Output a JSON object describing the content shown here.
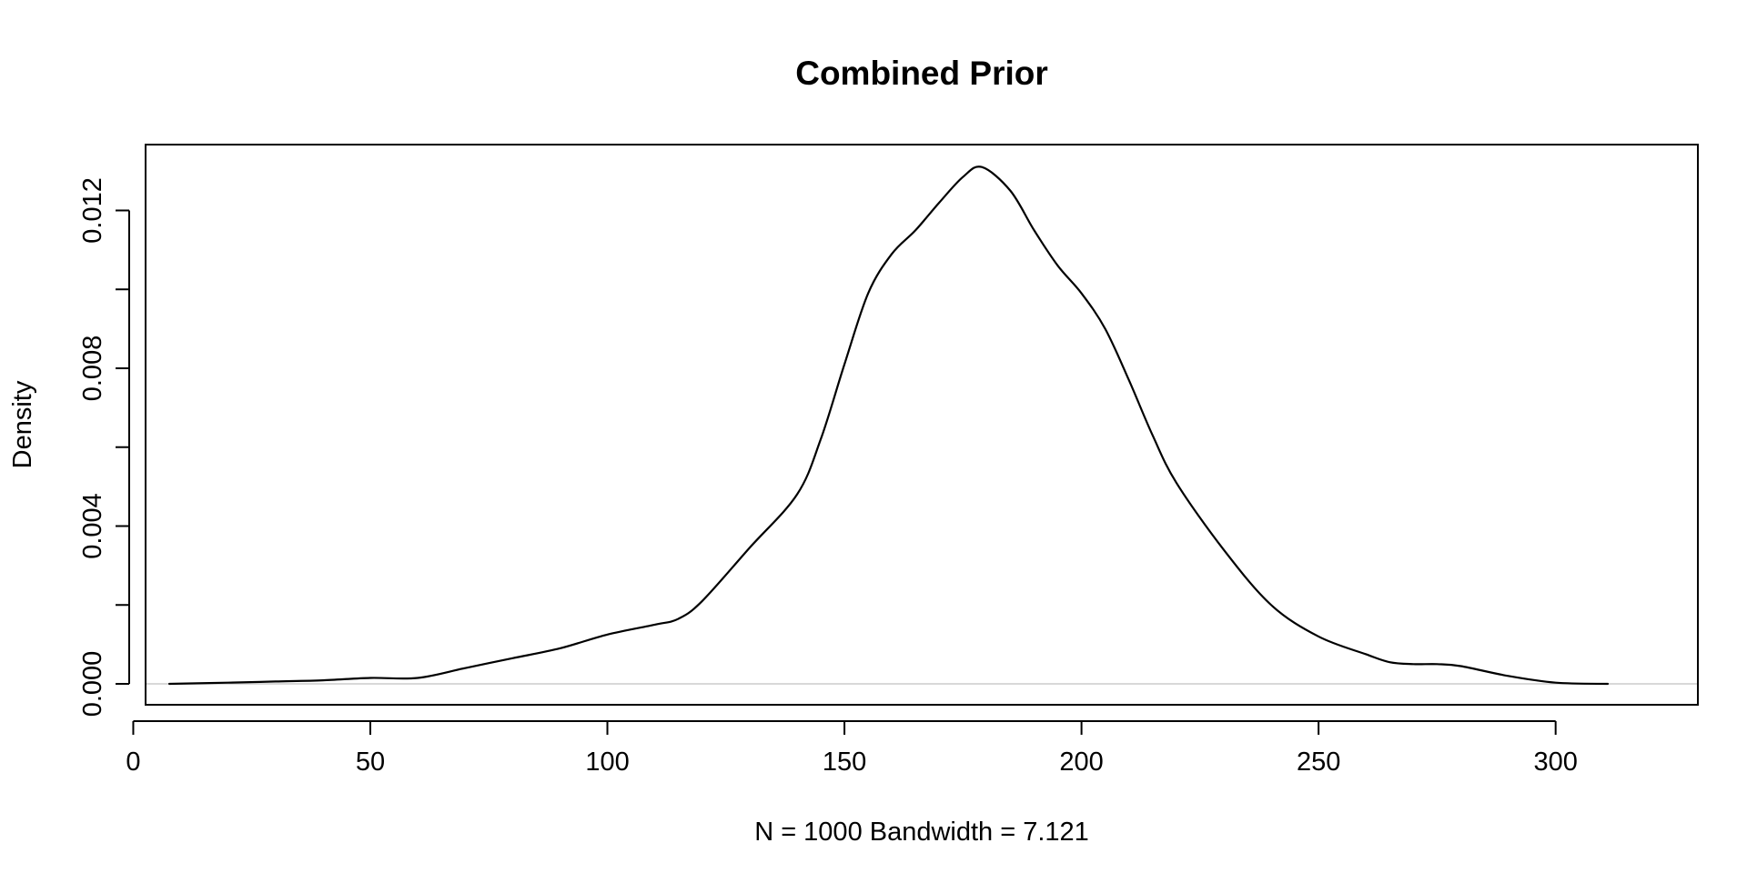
{
  "chart_data": {
    "type": "line",
    "title": "Combined Prior",
    "xlabel": "N = 1000   Bandwidth = 7.121",
    "ylabel": "Density",
    "xlim": [
      2.6,
      330
    ],
    "ylim": [
      -0.00053,
      0.01367
    ],
    "x_ticks": [
      0,
      50,
      100,
      150,
      200,
      250,
      300
    ],
    "x_tick_labels": [
      "0",
      "50",
      "100",
      "150",
      "200",
      "250",
      "300"
    ],
    "y_ticks": [
      0.0,
      0.002,
      0.004,
      0.006,
      0.008,
      0.01,
      0.012
    ],
    "y_tick_labels": [
      "0.000",
      "",
      "0.004",
      "",
      "0.008",
      "",
      "0.012"
    ],
    "zero_line": true,
    "grid": false,
    "colors": {
      "line": "#000000",
      "zero_line": "#cccccc",
      "frame": "#000000"
    },
    "series": [
      {
        "x": [
          7.6,
          20,
          30,
          40,
          50,
          60,
          70,
          80,
          90,
          100,
          110,
          115,
          120,
          130,
          140,
          145,
          150,
          155,
          160,
          165,
          170,
          175,
          179,
          185,
          190,
          195,
          200,
          205,
          210,
          215,
          220,
          230,
          240,
          250,
          260,
          265,
          270,
          275,
          280,
          290,
          300,
          311
        ],
        "y": [
          0.0,
          3e-05,
          6e-05,
          9e-05,
          0.00015,
          0.00015,
          0.0004,
          0.00065,
          0.0009,
          0.00125,
          0.0015,
          0.00165,
          0.0021,
          0.00345,
          0.0048,
          0.0062,
          0.0081,
          0.0099,
          0.0109,
          0.0115,
          0.0122,
          0.01285,
          0.0131,
          0.0125,
          0.0115,
          0.0106,
          0.0099,
          0.009,
          0.0077,
          0.0063,
          0.0051,
          0.0034,
          0.002,
          0.0012,
          0.00075,
          0.00055,
          0.0005,
          0.0005,
          0.00045,
          0.0002,
          3e-05,
          0.0
        ]
      }
    ]
  }
}
